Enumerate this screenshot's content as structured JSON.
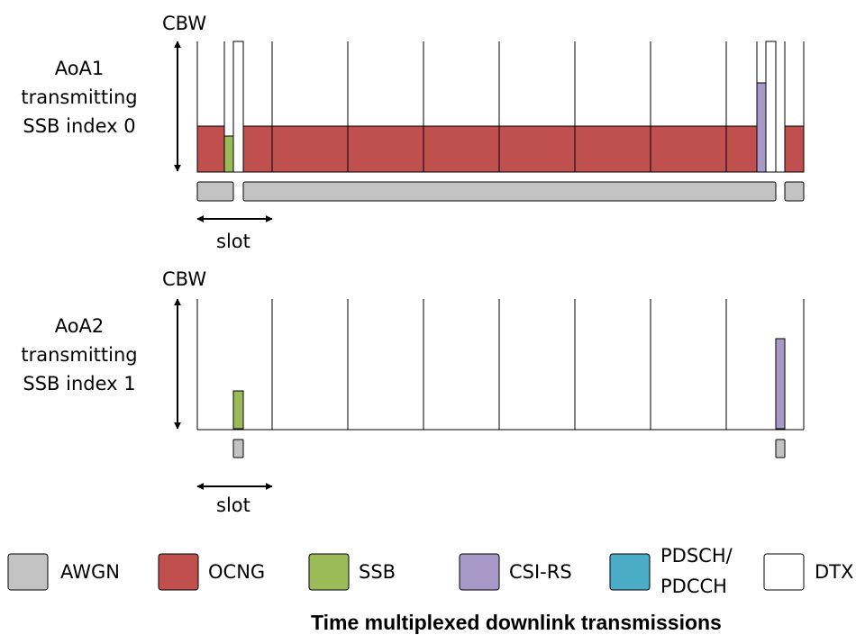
{
  "panels": [
    {
      "cbw_label": "CBW",
      "row_label": [
        "AoA1",
        "transmitting",
        "SSB index 0"
      ],
      "slot_label": "slot"
    },
    {
      "cbw_label": "CBW",
      "row_label": [
        "AoA2",
        "transmitting",
        "SSB index 1"
      ],
      "slot_label": "slot"
    }
  ],
  "legend": [
    {
      "label": "AWGN",
      "color": "#c3c3c3"
    },
    {
      "label": "OCNG",
      "color": "#c0504d"
    },
    {
      "label": "SSB",
      "color": "#9bbb59"
    },
    {
      "label": "CSI-RS",
      "color": "#a999c8"
    },
    {
      "label": "PDSCH/ PDCCH",
      "line1": "PDSCH/",
      "line2": "PDCCH",
      "color": "#4bacc6"
    },
    {
      "label": "DTX",
      "color": "#ffffff"
    }
  ],
  "title": "Time multiplexed downlink transmissions"
}
